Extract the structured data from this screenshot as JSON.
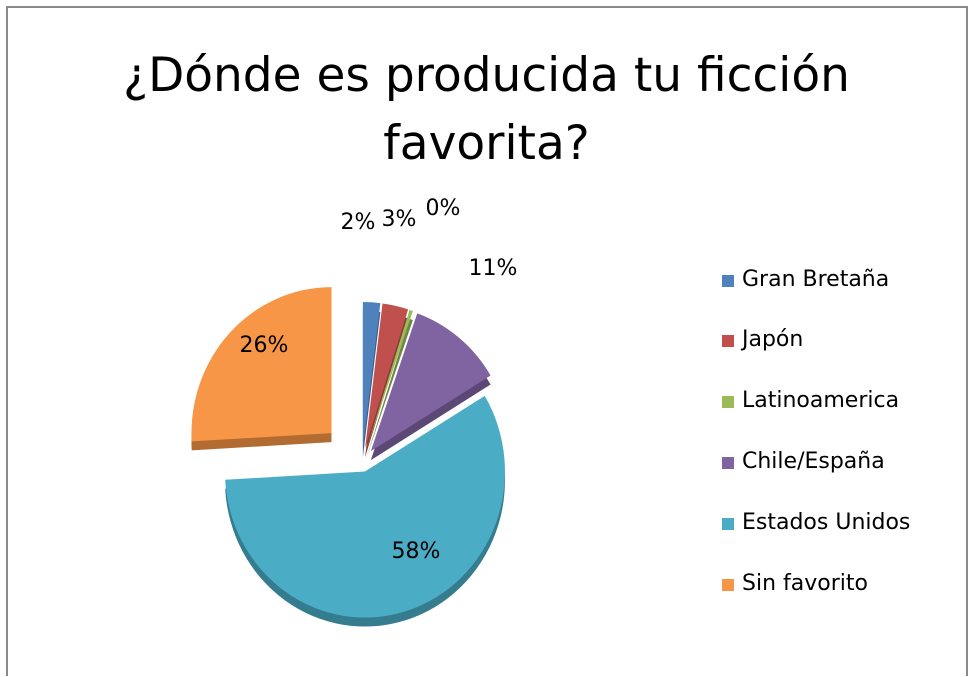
{
  "chart_data": {
    "type": "pie",
    "title_lines": [
      "¿Dónde es producida tu ficción",
      "favorita?"
    ],
    "categories": [
      "Gran Bretaña",
      "Japón",
      "Latinoamerica",
      "Chile/España",
      "Estados Unidos",
      "Sin favorito"
    ],
    "values": [
      2,
      3,
      0.4,
      11,
      58,
      26
    ],
    "data_labels": [
      "2%",
      "3%",
      "0%",
      "11%",
      "58%",
      "26%"
    ],
    "colors": [
      "#4F81BD",
      "#C0504D",
      "#9BBB59",
      "#8064A2",
      "#4BACC6",
      "#F79646"
    ],
    "legend_position": "right",
    "exploded": true
  }
}
